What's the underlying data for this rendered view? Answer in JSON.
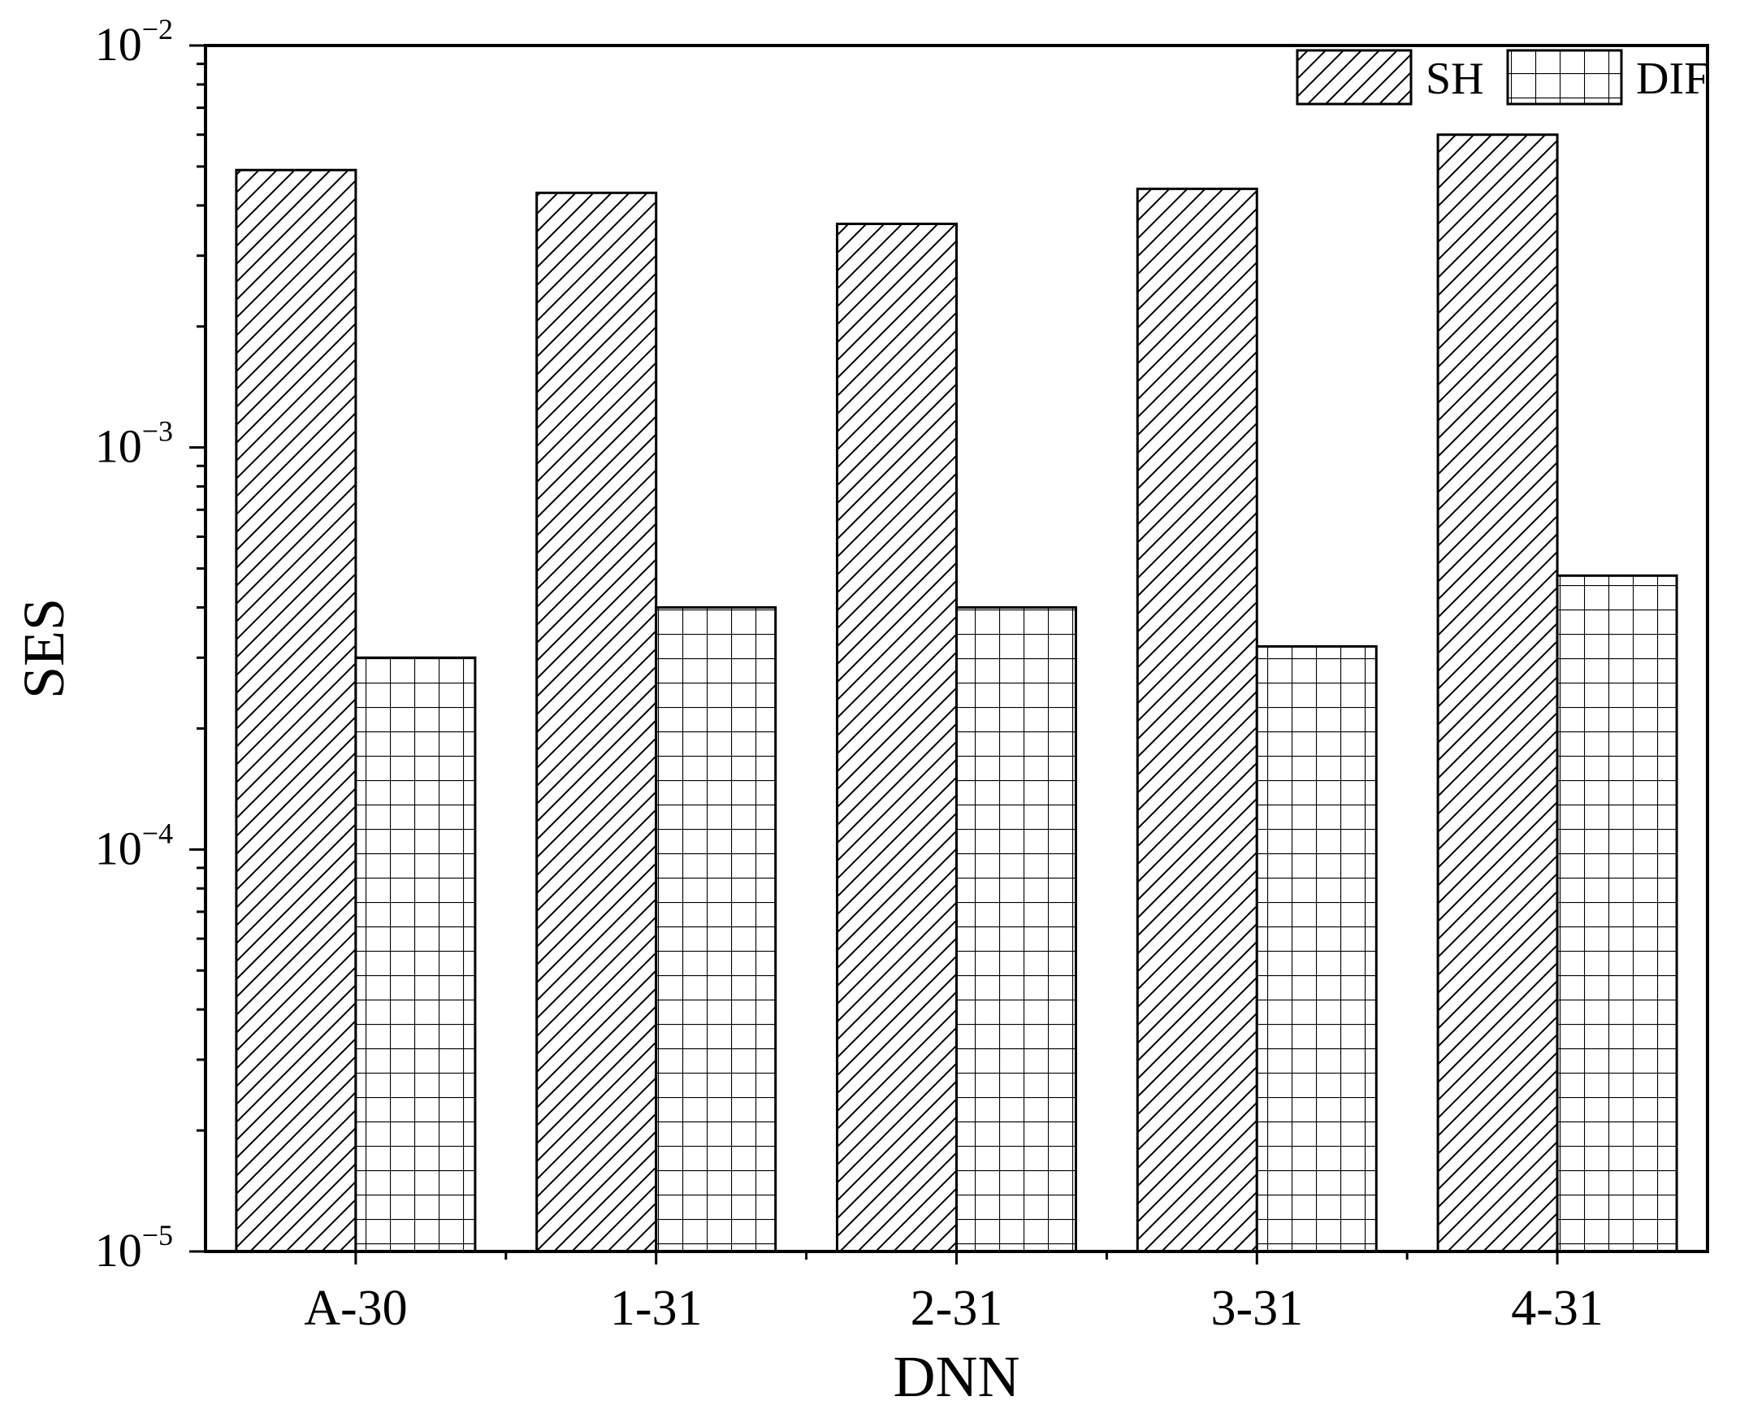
{
  "chart_data": {
    "type": "bar",
    "title": "",
    "xlabel": "DNN",
    "ylabel": "SES",
    "yscale": "log",
    "ylim": [
      1e-05,
      0.01
    ],
    "grid": false,
    "legend_position": "top-right",
    "categories": [
      "A-30",
      "1-31",
      "2-31",
      "3-31",
      "4-31"
    ],
    "series": [
      {
        "name": "SH",
        "pattern": "diagonal-hatch",
        "values": [
          0.0049,
          0.0043,
          0.0036,
          0.0044,
          0.006
        ]
      },
      {
        "name": "DIF",
        "pattern": "grid-hatch",
        "values": [
          0.0003,
          0.0004,
          0.0004,
          0.00032,
          0.00048
        ]
      }
    ],
    "y_ticks": [
      {
        "base": "10",
        "exp": "−5",
        "value": 1e-05
      },
      {
        "base": "10",
        "exp": "−4",
        "value": 0.0001
      },
      {
        "base": "10",
        "exp": "−3",
        "value": 0.001
      },
      {
        "base": "10",
        "exp": "−2",
        "value": 0.01
      }
    ],
    "colors": {
      "bar_fill": "#ffffff",
      "stroke": "#000000"
    }
  }
}
